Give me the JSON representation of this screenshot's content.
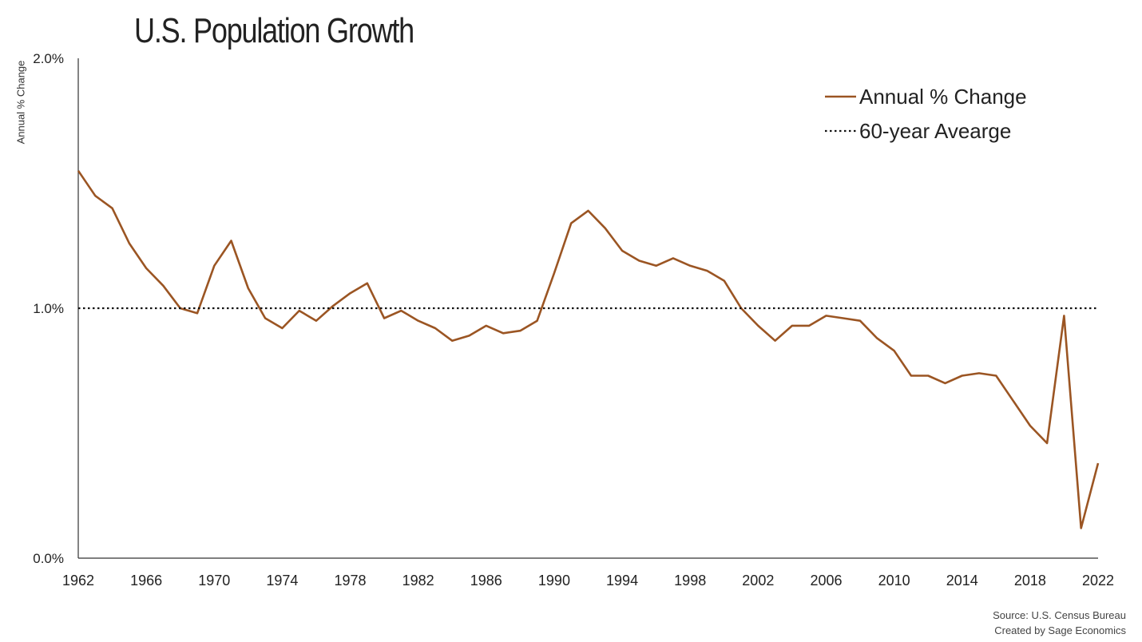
{
  "title": "U.S. Population Growth",
  "source": {
    "line1": "Source: U.S. Census Bureau",
    "line2": "Created by Sage Economics"
  },
  "colors": {
    "series": "#9b5523",
    "average": "#111111",
    "axis": "#333333"
  },
  "chart_data": {
    "type": "line",
    "title": "U.S. Population Growth",
    "xlabel": "",
    "ylabel": "Annual % Change",
    "xlim": [
      1962,
      2022
    ],
    "ylim": [
      0,
      2
    ],
    "y_ticks": [
      {
        "value": 0,
        "label": "0.0%"
      },
      {
        "value": 1,
        "label": "1.0%"
      },
      {
        "value": 2,
        "label": "2.0%"
      }
    ],
    "x_ticks": [
      1962,
      1966,
      1970,
      1974,
      1978,
      1982,
      1986,
      1990,
      1994,
      1998,
      2002,
      2006,
      2010,
      2014,
      2018,
      2022
    ],
    "grid": false,
    "legend_position": "top-right",
    "series": [
      {
        "name": "Annual % Change",
        "style": "solid",
        "x": [
          1962,
          1963,
          1964,
          1965,
          1966,
          1967,
          1968,
          1969,
          1970,
          1971,
          1972,
          1973,
          1974,
          1975,
          1976,
          1977,
          1978,
          1979,
          1980,
          1981,
          1982,
          1983,
          1984,
          1985,
          1986,
          1987,
          1988,
          1989,
          1990,
          1991,
          1992,
          1993,
          1994,
          1995,
          1996,
          1997,
          1998,
          1999,
          2000,
          2001,
          2002,
          2003,
          2004,
          2005,
          2006,
          2007,
          2008,
          2009,
          2010,
          2011,
          2012,
          2013,
          2014,
          2015,
          2016,
          2017,
          2018,
          2019,
          2020,
          2021,
          2022
        ],
        "values": [
          1.55,
          1.45,
          1.4,
          1.26,
          1.16,
          1.09,
          1.0,
          0.98,
          1.17,
          1.27,
          1.08,
          0.96,
          0.92,
          0.99,
          0.95,
          1.01,
          1.06,
          1.1,
          0.96,
          0.99,
          0.95,
          0.92,
          0.87,
          0.89,
          0.93,
          0.9,
          0.91,
          0.95,
          1.14,
          1.34,
          1.39,
          1.32,
          1.23,
          1.19,
          1.17,
          1.2,
          1.17,
          1.15,
          1.11,
          1.0,
          0.93,
          0.87,
          0.93,
          0.93,
          0.97,
          0.96,
          0.95,
          0.88,
          0.83,
          0.73,
          0.73,
          0.7,
          0.73,
          0.74,
          0.73,
          0.63,
          0.53,
          0.46,
          0.97,
          0.12,
          0.38
        ]
      },
      {
        "name": "60-year Avearge",
        "style": "dotted",
        "x": [
          1962,
          2022
        ],
        "values": [
          1.0,
          1.0
        ]
      }
    ]
  }
}
